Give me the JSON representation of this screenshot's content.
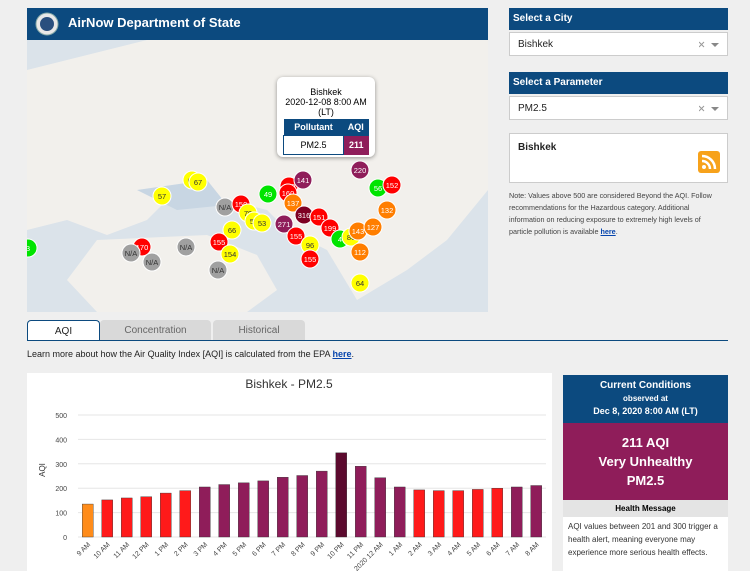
{
  "header": {
    "title": "AirNow Department of State"
  },
  "map": {
    "popup": {
      "city": "Bishkek",
      "datetime": "2020-12-08 8:00 AM",
      "tz": "(LT)",
      "col_pollutant": "Pollutant",
      "col_aqi": "AQI",
      "pollutant": "PM2.5",
      "aqi": "211"
    },
    "markers": [
      {
        "label": "63",
        "color": "#ffff00"
      },
      {
        "label": "67",
        "color": "#ffff00"
      },
      {
        "label": "57",
        "color": "#ffff00"
      },
      {
        "label": "49",
        "color": "#00e400"
      },
      {
        "label": "N/A",
        "color": "#a0a0a0"
      },
      {
        "label": "150",
        "color": "#ff0000"
      },
      {
        "label": "79",
        "color": "#ffff00"
      },
      {
        "label": "50",
        "color": "#ffff00"
      },
      {
        "label": "53",
        "color": "#ffff00"
      },
      {
        "label": "66",
        "color": "#ffff00"
      },
      {
        "label": "271",
        "color": "#8f1d5a"
      },
      {
        "label": "155",
        "color": "#ff0000"
      },
      {
        "label": "154",
        "color": "#ffff00"
      },
      {
        "label": "N/A",
        "color": "#a0a0a0"
      },
      {
        "label": "170",
        "color": "#ff0000"
      },
      {
        "label": "N/A",
        "color": "#a0a0a0"
      },
      {
        "label": "N/A",
        "color": "#a0a0a0"
      },
      {
        "label": "N/A",
        "color": "#a0a0a0"
      },
      {
        "label": "159",
        "color": "#ff0000"
      },
      {
        "label": "141",
        "color": "#8f1d5a"
      },
      {
        "label": "160",
        "color": "#ff0000"
      },
      {
        "label": "137",
        "color": "#ff7e00"
      },
      {
        "label": "316",
        "color": "#7e0023"
      },
      {
        "label": "151",
        "color": "#ff0000"
      },
      {
        "label": "199",
        "color": "#ff0000"
      },
      {
        "label": "155",
        "color": "#ff0000"
      },
      {
        "label": "96",
        "color": "#ffff00"
      },
      {
        "label": "155",
        "color": "#ff0000"
      },
      {
        "label": "4",
        "color": "#00e400"
      },
      {
        "label": "86",
        "color": "#ffff00"
      },
      {
        "label": "143",
        "color": "#ff7e00"
      },
      {
        "label": "127",
        "color": "#ff7e00"
      },
      {
        "label": "132",
        "color": "#ff7e00"
      },
      {
        "label": "56",
        "color": "#00e400"
      },
      {
        "label": "152",
        "color": "#ff0000"
      },
      {
        "label": "220",
        "color": "#8f1d5a"
      },
      {
        "label": "112",
        "color": "#ff7e00"
      },
      {
        "label": "64",
        "color": "#ffff00"
      },
      {
        "label": "3",
        "color": "#00e400"
      }
    ]
  },
  "sidebar": {
    "city_label": "Select a City",
    "city_value": "Bishkek",
    "param_label": "Select a Parameter",
    "param_value": "PM2.5",
    "info_city": "Bishkek",
    "note": "Note: Values above 500 are considered Beyond the AQI. Follow recommendations for the Hazardous category. Additional information on reducing exposure to extremely high levels of particle pollution is available ",
    "note_link": "here",
    "note_end": "."
  },
  "tabs": [
    "AQI",
    "Concentration",
    "Historical"
  ],
  "learn": {
    "text": "Learn more about how the Air Quality Index [AQI] is calculated from the EPA ",
    "link": "here",
    "end": "."
  },
  "chart_data": {
    "type": "bar",
    "title": "Bishkek - PM2.5",
    "y_label": "AQI",
    "categories": [
      "9 AM",
      "10 AM",
      "11 AM",
      "12 PM",
      "1 PM",
      "2 PM",
      "3 PM",
      "4 PM",
      "5 PM",
      "6 PM",
      "7 PM",
      "8 PM",
      "9 PM",
      "10 PM",
      "11 PM",
      "2020 12 AM",
      "1 AM",
      "2 AM",
      "3 AM",
      "4 AM",
      "5 AM",
      "6 AM",
      "7 AM",
      "8 AM"
    ],
    "values": [
      135,
      152,
      160,
      165,
      180,
      190,
      205,
      215,
      222,
      230,
      245,
      252,
      270,
      345,
      290,
      243,
      205,
      193,
      190,
      190,
      195,
      200,
      205,
      211
    ],
    "colors": [
      "#ff8c1a",
      "#ff1a1a",
      "#ff1a1a",
      "#ff1a1a",
      "#ff1a1a",
      "#ff1a1a",
      "#8f1d5a",
      "#8f1d5a",
      "#8f1d5a",
      "#8f1d5a",
      "#8f1d5a",
      "#8f1d5a",
      "#8f1d5a",
      "#5c0a2e",
      "#8f1d5a",
      "#8f1d5a",
      "#8f1d5a",
      "#ff1a1a",
      "#ff1a1a",
      "#ff1a1a",
      "#ff1a1a",
      "#ff1a1a",
      "#8f1d5a",
      "#8f1d5a"
    ],
    "ylim": [
      0,
      500
    ],
    "yticks": [
      0,
      100,
      200,
      300,
      400,
      500
    ],
    "grid": true
  },
  "conditions": {
    "title": "Current Conditions",
    "observed": "observed at",
    "datetime": "Dec 8, 2020 8:00 AM (LT)",
    "aqi_line": "211 AQI",
    "category": "Very Unhealthy",
    "pollutant": "PM2.5",
    "health_title": "Health Message",
    "health_text": "AQI values between 201 and 300 trigger a health alert, meaning everyone may experience more serious health effects."
  }
}
